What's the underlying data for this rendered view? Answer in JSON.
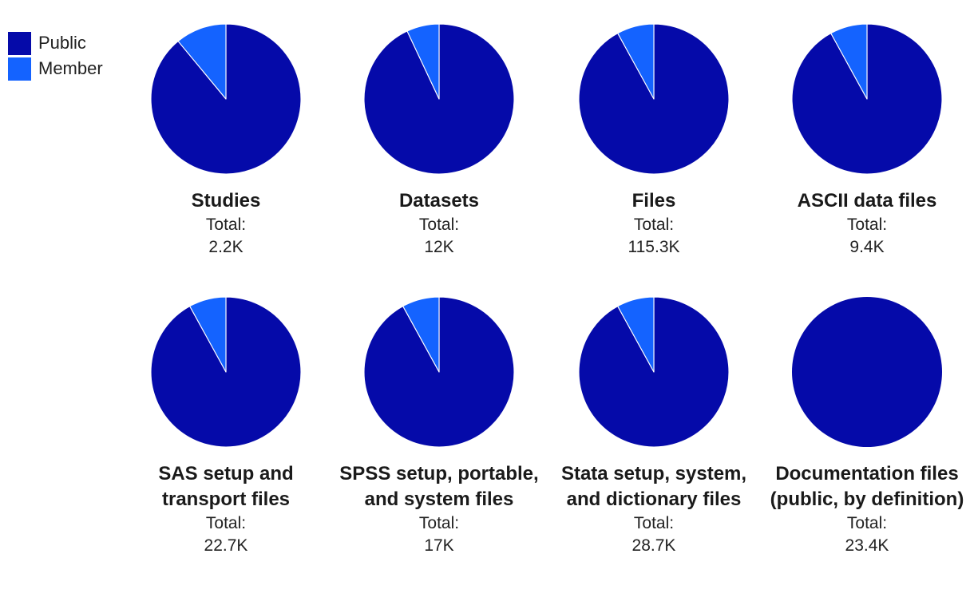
{
  "colors": {
    "public": "#050aa9",
    "member": "#1463ff",
    "separator": "#ffffff"
  },
  "legend": [
    {
      "label": "Public",
      "color": "#050aa9"
    },
    {
      "label": "Member",
      "color": "#1463ff"
    }
  ],
  "total_label": "Total:",
  "chart_data": [
    {
      "type": "pie",
      "title": "Studies",
      "total": "2.2K",
      "slices": [
        {
          "name": "Public",
          "value": 89
        },
        {
          "name": "Member",
          "value": 11
        }
      ]
    },
    {
      "type": "pie",
      "title": "Datasets",
      "total": "12K",
      "slices": [
        {
          "name": "Public",
          "value": 93
        },
        {
          "name": "Member",
          "value": 7
        }
      ]
    },
    {
      "type": "pie",
      "title": "Files",
      "total": "115.3K",
      "slices": [
        {
          "name": "Public",
          "value": 92
        },
        {
          "name": "Member",
          "value": 8
        }
      ]
    },
    {
      "type": "pie",
      "title": "ASCII data files",
      "total": "9.4K",
      "slices": [
        {
          "name": "Public",
          "value": 92
        },
        {
          "name": "Member",
          "value": 8
        }
      ]
    },
    {
      "type": "pie",
      "title": "SAS setup and transport files",
      "total": "22.7K",
      "slices": [
        {
          "name": "Public",
          "value": 92
        },
        {
          "name": "Member",
          "value": 8
        }
      ]
    },
    {
      "type": "pie",
      "title": "SPSS setup, portable, and system files",
      "total": "17K",
      "slices": [
        {
          "name": "Public",
          "value": 92
        },
        {
          "name": "Member",
          "value": 8
        }
      ]
    },
    {
      "type": "pie",
      "title": "Stata setup, system, and dictionary files",
      "total": "28.7K",
      "slices": [
        {
          "name": "Public",
          "value": 92
        },
        {
          "name": "Member",
          "value": 8
        }
      ]
    },
    {
      "type": "pie",
      "title": "Documentation files (public, by definition)",
      "total": "23.4K",
      "slices": [
        {
          "name": "Public",
          "value": 100
        },
        {
          "name": "Member",
          "value": 0
        }
      ]
    }
  ]
}
